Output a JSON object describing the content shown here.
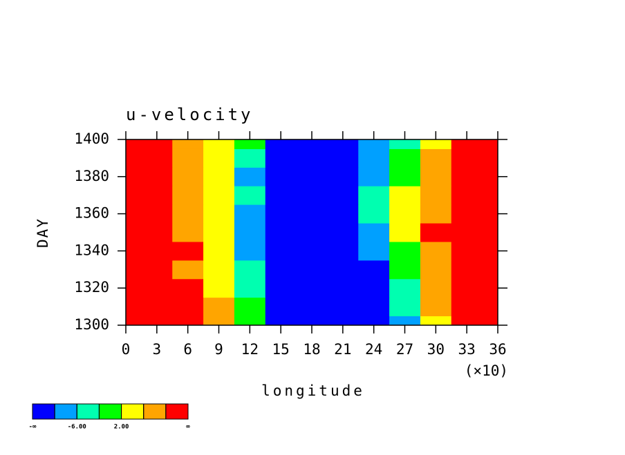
{
  "chart_data": {
    "type": "contourf",
    "title": "u-velocity",
    "x_label": "longitude",
    "x_multiplier": "(×10)",
    "y_label": "DAY",
    "x": [
      0,
      3,
      6,
      9,
      12,
      15,
      18,
      21,
      24,
      27,
      30,
      33,
      36
    ],
    "y": [
      1300,
      1310,
      1320,
      1330,
      1340,
      1350,
      1360,
      1370,
      1380,
      1390,
      1400
    ],
    "z": [
      [
        14,
        14,
        14,
        8,
        0,
        -14,
        -14,
        -14,
        -14,
        -8,
        4,
        14,
        14
      ],
      [
        14,
        14,
        14,
        6,
        -2,
        -14,
        -14,
        -14,
        -14,
        -4,
        6,
        14,
        14
      ],
      [
        14,
        14,
        10,
        4,
        -4,
        -14,
        -14,
        -14,
        -14,
        -4,
        8,
        14,
        14
      ],
      [
        14,
        14,
        8,
        4,
        -4,
        -14,
        -14,
        -14,
        -12,
        -2,
        8,
        14,
        14
      ],
      [
        14,
        14,
        10,
        4,
        -8,
        -14,
        -14,
        -14,
        -10,
        0,
        8,
        14,
        14
      ],
      [
        14,
        14,
        8,
        4,
        -8,
        -14,
        -14,
        -14,
        -8,
        2,
        10,
        14,
        14
      ],
      [
        14,
        14,
        8,
        2,
        -10,
        -14,
        -14,
        -14,
        -4,
        4,
        8,
        12,
        14
      ],
      [
        14,
        12,
        8,
        4,
        -6,
        -14,
        -14,
        -14,
        -6,
        2,
        8,
        14,
        14
      ],
      [
        14,
        12,
        8,
        2,
        -8,
        -14,
        -14,
        -14,
        -8,
        0,
        8,
        14,
        14
      ],
      [
        14,
        12,
        6,
        4,
        -4,
        -14,
        -14,
        -14,
        -10,
        -2,
        8,
        14,
        14
      ],
      [
        14,
        10,
        6,
        4,
        -2,
        -12,
        -14,
        -14,
        -10,
        -4,
        4,
        12,
        14
      ]
    ],
    "xlim": [
      0,
      36
    ],
    "xticks": [
      0,
      3,
      6,
      9,
      12,
      15,
      18,
      21,
      24,
      27,
      30,
      33,
      36
    ],
    "ylim": [
      1300,
      1400
    ],
    "yticks": [
      1300,
      1320,
      1340,
      1360,
      1380,
      1400
    ],
    "levels": [
      -10,
      -6,
      -2,
      2,
      6,
      10
    ],
    "colors": [
      "#0000ff",
      "#00a0ff",
      "#00ffb0",
      "#00ff00",
      "#ffff00",
      "#ffa500",
      "#ff0000"
    ],
    "colorbar_ticks": [
      {
        "value": -6,
        "label": "-6.00"
      },
      {
        "value": 2,
        "label": "2.00"
      }
    ],
    "colorbar_ends": [
      "-∞",
      "∞"
    ]
  }
}
